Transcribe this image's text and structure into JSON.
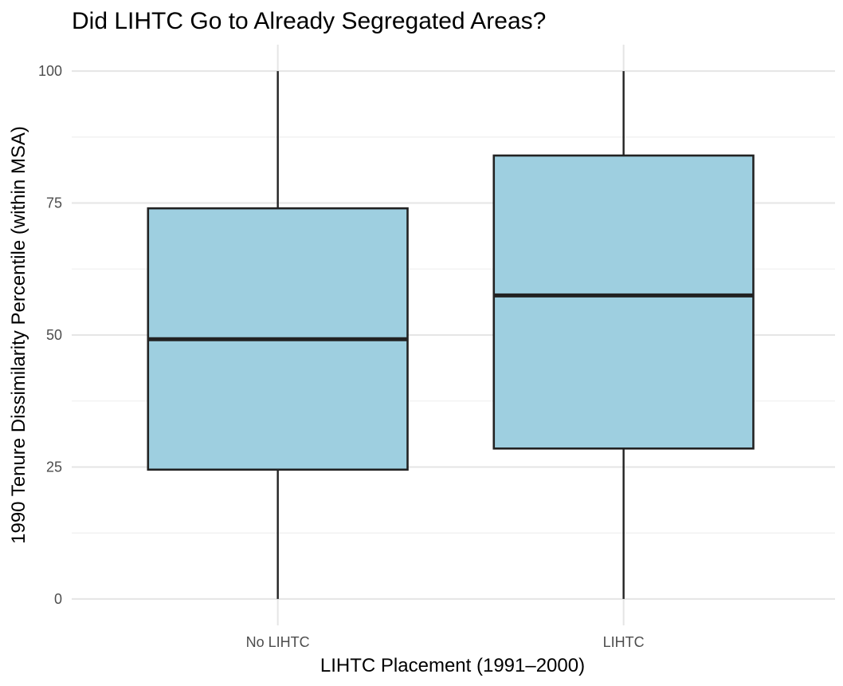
{
  "chart_data": {
    "type": "boxplot",
    "title": "Did LIHTC Go to Already Segregated Areas?",
    "xlabel": "LIHTC Placement (1991–2000)",
    "ylabel": "1990 Tenure Dissimilarity Percentile (within MSA)",
    "ylim": [
      -5,
      105
    ],
    "yticks": [
      0,
      25,
      50,
      75,
      100
    ],
    "grid": true,
    "box_color": "#9ecfe0",
    "categories": [
      "No LIHTC",
      "LIHTC"
    ],
    "boxes": [
      {
        "category": "No LIHTC",
        "min": 0,
        "q1": 24.5,
        "median": 49.2,
        "q3": 74,
        "max": 100
      },
      {
        "category": "LIHTC",
        "min": 0,
        "q1": 28.5,
        "median": 57.5,
        "q3": 84,
        "max": 100
      }
    ]
  }
}
